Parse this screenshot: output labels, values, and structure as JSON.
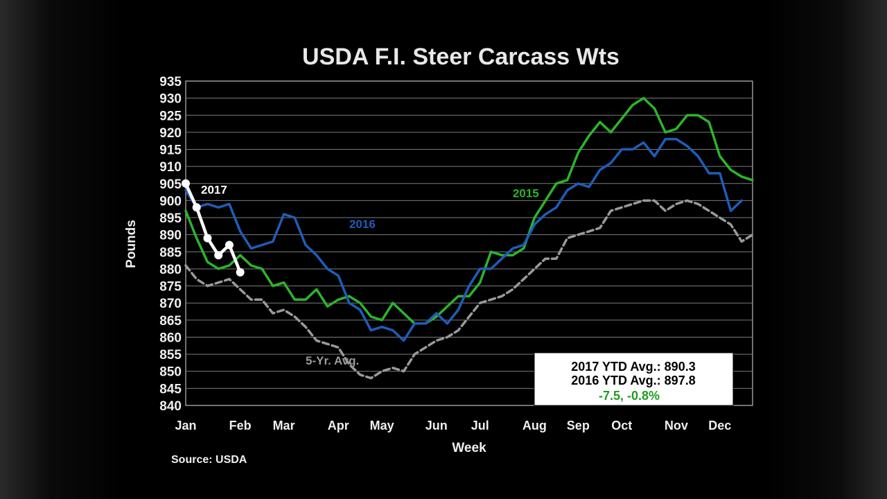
{
  "chart_data": {
    "type": "line",
    "title": "USDA F.I. Steer Carcass Wts",
    "xlabel": "Week",
    "ylabel": "Pounds",
    "source": "Source: USDA",
    "ylim": [
      840,
      935
    ],
    "ytick_step": 5,
    "xlim": [
      1,
      53
    ],
    "x_tick_labels": [
      "Jan",
      "Feb",
      "Mar",
      "Apr",
      "May",
      "Jun",
      "Jul",
      "Aug",
      "Sep",
      "Oct",
      "Nov",
      "Dec"
    ],
    "x_tick_weeks": [
      1,
      6,
      10,
      15,
      19,
      24,
      28,
      33,
      37,
      41,
      46,
      50
    ],
    "grid": true,
    "series": [
      {
        "name": "2015",
        "color": "#2bb52b",
        "dash": false,
        "markers": false,
        "label_week": 31,
        "label_value": 901,
        "values": [
          897,
          889,
          882,
          880,
          881,
          884,
          881,
          880,
          875,
          876,
          871,
          871,
          874,
          869,
          871,
          872,
          870,
          866,
          865,
          870,
          867,
          864,
          864,
          866,
          869,
          872,
          872,
          876,
          885,
          884,
          884,
          886,
          895,
          900,
          905,
          906,
          914,
          919,
          923,
          920,
          924,
          928,
          930,
          927,
          920,
          921,
          925,
          925,
          923,
          913,
          909,
          907,
          906
        ]
      },
      {
        "name": "2016",
        "color": "#1e5db8",
        "dash": false,
        "markers": false,
        "label_week": 16,
        "label_value": 892,
        "values": [
          903,
          898,
          899,
          898,
          899,
          891,
          886,
          887,
          888,
          896,
          895,
          887,
          884,
          880,
          878,
          870,
          868,
          862,
          863,
          862,
          859,
          864,
          864,
          867,
          864,
          868,
          875,
          880,
          880,
          883,
          886,
          887,
          893,
          896,
          898,
          903,
          905,
          904,
          909,
          911,
          915,
          915,
          917,
          913,
          918,
          918,
          916,
          913,
          908,
          908,
          897,
          900
        ]
      },
      {
        "name": "5-Yr. Avg.",
        "color": "#9a9a9a",
        "dash": true,
        "markers": false,
        "label_week": 12,
        "label_value": 852,
        "values": [
          881,
          877,
          875,
          876,
          877,
          874,
          871,
          871,
          867,
          868,
          866,
          863,
          859,
          858,
          857,
          852,
          849,
          848,
          850,
          851,
          850,
          855,
          857,
          859,
          860,
          862,
          866,
          870,
          871,
          872,
          874,
          877,
          880,
          883,
          883,
          889,
          890,
          891,
          892,
          897,
          898,
          899,
          900,
          900,
          897,
          899,
          900,
          899,
          897,
          895,
          893,
          888,
          890
        ]
      },
      {
        "name": "2017",
        "color": "#ffffff",
        "dash": false,
        "markers": true,
        "label_week": 2.4,
        "label_value": 902,
        "values": [
          905,
          898,
          889,
          884,
          887,
          879
        ]
      }
    ],
    "summary": {
      "line1": "2017 YTD Avg.: 890.3",
      "line2": "2016 YTD Avg.: 897.8",
      "line3": "-7.5, -0.8%",
      "line3_color": "#1f9d1f"
    }
  }
}
